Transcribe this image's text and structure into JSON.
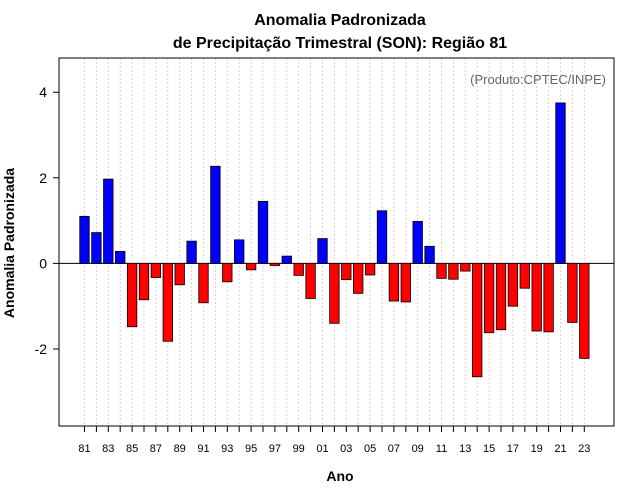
{
  "chart_data": {
    "type": "bar",
    "title_line1": "Anomalia Padronizada",
    "title_line2": "de Precipitação Trimestral (SON): Região 81",
    "xlabel": "Ano",
    "ylabel": "Anomalia Padronizada",
    "credit": "(Produto:CPTEC/INPE)",
    "ylim": [
      -3.8,
      4.8
    ],
    "yticks": [
      -2,
      0,
      2,
      4
    ],
    "ytick_labels": [
      "-2",
      "0",
      "2",
      "4"
    ],
    "categories": [
      "81",
      "82",
      "83",
      "84",
      "85",
      "86",
      "87",
      "88",
      "89",
      "90",
      "91",
      "92",
      "93",
      "94",
      "95",
      "96",
      "97",
      "98",
      "99",
      "00",
      "01",
      "02",
      "03",
      "04",
      "05",
      "06",
      "07",
      "08",
      "09",
      "10",
      "11",
      "12",
      "13",
      "14",
      "15",
      "16",
      "17",
      "18",
      "19",
      "20",
      "21",
      "22",
      "23"
    ],
    "xtick_labels": [
      "81",
      "83",
      "85",
      "87",
      "89",
      "91",
      "93",
      "95",
      "97",
      "99",
      "01",
      "03",
      "05",
      "07",
      "09",
      "11",
      "13",
      "15",
      "17",
      "19",
      "21",
      "23"
    ],
    "values": [
      1.1,
      0.72,
      1.97,
      0.28,
      -1.48,
      -0.85,
      -0.33,
      -1.82,
      -0.5,
      0.52,
      -0.92,
      2.27,
      -0.43,
      0.55,
      -0.15,
      1.45,
      -0.05,
      0.17,
      -0.28,
      -0.82,
      0.58,
      -1.4,
      -0.38,
      -0.7,
      -0.27,
      1.23,
      -0.88,
      -0.9,
      0.98,
      0.4,
      -0.35,
      -0.37,
      -0.18,
      -2.65,
      -1.62,
      -1.55,
      -1.0,
      -0.58,
      -1.58,
      -1.6,
      3.75,
      -1.38,
      -2.22
    ],
    "positive_color": "#0000ff",
    "negative_color": "#ff0000",
    "grid": true
  }
}
